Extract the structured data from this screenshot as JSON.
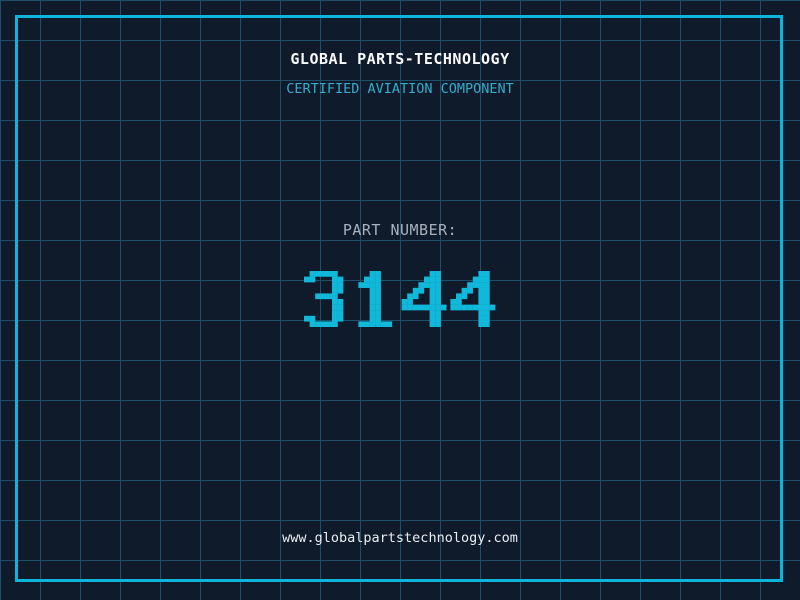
{
  "header": {
    "title": "GLOBAL PARTS-TECHNOLOGY",
    "subtitle": "CERTIFIED AVIATION COMPONENT"
  },
  "part_number": {
    "label": "PART NUMBER:",
    "value": "3144"
  },
  "footer": {
    "website": "www.globalpartstechnology.com"
  },
  "colors": {
    "background": "#0f1a2b",
    "grid_line": "#1c4f6a",
    "frame": "#0db5dd",
    "title_text": "#f8fafc",
    "subtitle_text": "#33accd",
    "part_label_text": "#a8b2bc",
    "part_value_text": "#10b8da",
    "footer_text": "#e9eef2"
  }
}
